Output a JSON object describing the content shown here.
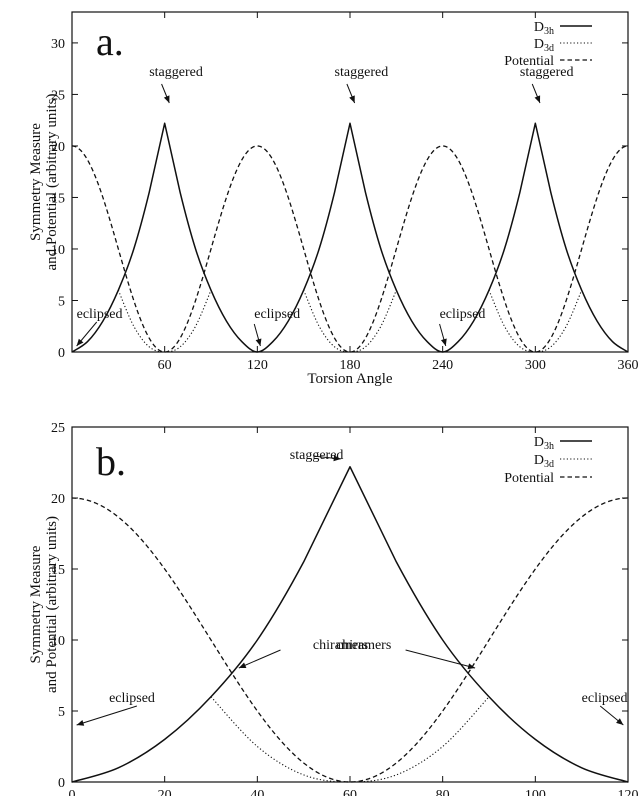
{
  "chart_data": [
    {
      "type": "line",
      "panel_label": "a.",
      "xlabel": "Torsion Angle",
      "ylabel_lines": [
        "Symmetry Measure",
        "and Potential (arbitrary units)"
      ],
      "xlim": [
        0,
        360
      ],
      "ylim": [
        0,
        33
      ],
      "xticks": [
        60,
        120,
        180,
        240,
        300,
        360
      ],
      "yticks": [
        0,
        5,
        10,
        15,
        20,
        25,
        30
      ],
      "legend_position": "top-right",
      "series": [
        {
          "name": "D3h",
          "name_main": "D",
          "name_sub": "3h",
          "style": "solid",
          "x": [
            0,
            10,
            20,
            30,
            40,
            50,
            60,
            70,
            80,
            90,
            100,
            110,
            120,
            130,
            140,
            150,
            160,
            170,
            180,
            190,
            200,
            210,
            220,
            230,
            240,
            250,
            260,
            270,
            280,
            290,
            300,
            310,
            320,
            330,
            340,
            350,
            360
          ],
          "y": [
            0,
            1.0,
            3.0,
            6.0,
            10.0,
            15.5,
            22.2,
            15.5,
            10.0,
            6.0,
            3.0,
            1.0,
            0,
            1.0,
            3.0,
            6.0,
            10.0,
            15.5,
            22.2,
            15.5,
            10.0,
            6.0,
            3.0,
            1.0,
            0,
            1.0,
            3.0,
            6.0,
            10.0,
            15.5,
            22.2,
            15.5,
            10.0,
            6.0,
            3.0,
            1.0,
            0
          ]
        },
        {
          "name": "D3d",
          "name_main": "D",
          "name_sub": "3d",
          "style": "dotted",
          "x": [
            30,
            40,
            50,
            60,
            70,
            80,
            90,
            150,
            160,
            170,
            180,
            190,
            200,
            210,
            270,
            280,
            290,
            300,
            310,
            320,
            330
          ],
          "y": [
            6.0,
            2.5,
            0.5,
            0,
            0.5,
            2.5,
            6.0,
            6.0,
            2.5,
            0.5,
            0,
            0.5,
            2.5,
            6.0,
            6.0,
            2.5,
            0.5,
            0,
            0.5,
            2.5,
            6.0
          ]
        },
        {
          "name": "Potential",
          "style": "dashed",
          "function": "potential",
          "period": 120,
          "amplitude": 20
        }
      ],
      "annotations": [
        {
          "text": "staggered",
          "x": 60,
          "y": 22.2
        },
        {
          "text": "staggered",
          "x": 180,
          "y": 22.2
        },
        {
          "text": "staggered",
          "x": 300,
          "y": 22.2
        },
        {
          "text": "eclipsed",
          "x": 0,
          "y": 0
        },
        {
          "text": "eclipsed",
          "x": 120,
          "y": 0
        },
        {
          "text": "eclipsed",
          "x": 240,
          "y": 0
        }
      ]
    },
    {
      "type": "line",
      "panel_label": "b.",
      "xlabel": "Torsion Angle",
      "ylabel_lines": [
        "Symmetry Measure",
        "and Potential (arbitrary units)"
      ],
      "xlim": [
        0,
        120
      ],
      "ylim": [
        0,
        25
      ],
      "xticks": [
        0,
        20,
        40,
        60,
        80,
        100,
        120
      ],
      "yticks": [
        0,
        5,
        10,
        15,
        20,
        25
      ],
      "legend_position": "top-right",
      "series": [
        {
          "name": "D3h",
          "name_main": "D",
          "name_sub": "3h",
          "style": "solid",
          "x": [
            0,
            10,
            20,
            30,
            40,
            50,
            60,
            70,
            80,
            90,
            100,
            110,
            120
          ],
          "y": [
            0,
            1.0,
            3.0,
            6.0,
            10.0,
            15.5,
            22.2,
            15.5,
            10.0,
            6.0,
            3.0,
            1.0,
            0
          ]
        },
        {
          "name": "D3d",
          "name_main": "D",
          "name_sub": "3d",
          "style": "dotted",
          "x": [
            30,
            40,
            50,
            60,
            70,
            80,
            90
          ],
          "y": [
            6.0,
            2.5,
            0.5,
            0,
            0.5,
            2.5,
            6.0
          ]
        },
        {
          "name": "Potential",
          "style": "dashed",
          "function": "potential",
          "period": 120,
          "amplitude": 20
        }
      ],
      "annotations": [
        {
          "text": "staggered",
          "x": 60,
          "y": 22.2
        },
        {
          "text": "eclipsed",
          "x": 0,
          "y": 0
        },
        {
          "text": "eclipsed",
          "x": 120,
          "y": 0
        },
        {
          "text": "chiramers",
          "x": 30,
          "y": 6.0
        },
        {
          "text": "chiramers",
          "x": 90,
          "y": 6.0
        }
      ]
    }
  ]
}
